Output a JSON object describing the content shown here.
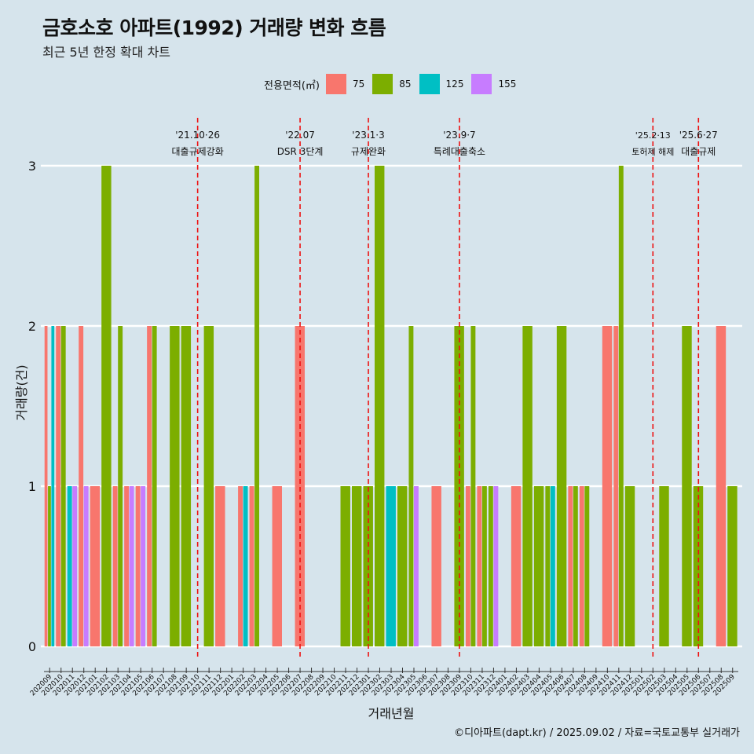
{
  "title": "금호소호 아파트(1992) 거래량 변화 흐름",
  "subtitle": "최근 5년 한정 확대 차트",
  "caption": "©디아파트(dapt.kr) / 2025.09.02 / 자료=국토교통부 실거래가",
  "legend": {
    "title": "전용면적(㎡)",
    "items": [
      {
        "label": "75",
        "color": "#f8766d"
      },
      {
        "label": "85",
        "color": "#7cae00"
      },
      {
        "label": "125",
        "color": "#00bfc4"
      },
      {
        "label": "155",
        "color": "#c77cff"
      }
    ]
  },
  "chart_data": {
    "type": "bar",
    "xlabel": "거래년월",
    "ylabel": "거래량(건)",
    "ylim": [
      0,
      3
    ],
    "yticks": [
      0,
      1,
      2,
      3
    ],
    "grid": true,
    "legend_position": "top",
    "categories": [
      "202009",
      "202010",
      "202011",
      "202012",
      "202101",
      "202102",
      "202103",
      "202104",
      "202105",
      "202106",
      "202107",
      "202108",
      "202109",
      "202110",
      "202111",
      "202112",
      "202201",
      "202202",
      "202203",
      "202204",
      "202205",
      "202206",
      "202207",
      "202208",
      "202209",
      "202210",
      "202211",
      "202212",
      "202301",
      "202302",
      "202303",
      "202304",
      "202305",
      "202306",
      "202307",
      "202308",
      "202309",
      "202310",
      "202311",
      "202312",
      "202401",
      "202402",
      "202403",
      "202404",
      "202405",
      "202406",
      "202407",
      "202408",
      "202409",
      "202410",
      "202411",
      "202412",
      "202501",
      "202502",
      "202503",
      "202504",
      "202505",
      "202506",
      "202507",
      "202508",
      "202509"
    ],
    "series": [
      {
        "name": "75",
        "values": [
          2,
          2,
          0,
          2,
          1,
          0,
          1,
          1,
          1,
          2,
          0,
          0,
          0,
          0,
          0,
          1,
          0,
          1,
          1,
          0,
          1,
          0,
          2,
          0,
          0,
          0,
          0,
          0,
          0,
          0,
          0,
          0,
          0,
          0,
          1,
          0,
          0,
          1,
          1,
          0,
          0,
          1,
          0,
          0,
          0,
          0,
          1,
          1,
          0,
          2,
          2,
          0,
          0,
          0,
          0,
          0,
          0,
          0,
          0,
          2,
          0
        ]
      },
      {
        "name": "85",
        "values": [
          1,
          2,
          0,
          0,
          0,
          3,
          2,
          0,
          0,
          2,
          0,
          2,
          2,
          0,
          2,
          0,
          0,
          0,
          3,
          0,
          0,
          0,
          0,
          0,
          0,
          0,
          1,
          1,
          1,
          3,
          0,
          1,
          2,
          0,
          0,
          0,
          2,
          2,
          1,
          1,
          0,
          0,
          2,
          1,
          1,
          2,
          1,
          1,
          0,
          0,
          3,
          1,
          0,
          0,
          1,
          0,
          2,
          1,
          0,
          0,
          1
        ]
      },
      {
        "name": "125",
        "values": [
          2,
          0,
          1,
          0,
          0,
          0,
          0,
          0,
          0,
          0,
          0,
          0,
          0,
          0,
          0,
          0,
          0,
          1,
          0,
          0,
          0,
          0,
          0,
          0,
          0,
          0,
          0,
          0,
          0,
          0,
          1,
          0,
          0,
          0,
          0,
          0,
          0,
          0,
          0,
          0,
          0,
          0,
          0,
          0,
          1,
          0,
          0,
          0,
          0,
          0,
          0,
          0,
          0,
          0,
          0,
          0,
          0,
          0,
          0,
          0,
          0
        ]
      },
      {
        "name": "155",
        "values": [
          0,
          0,
          1,
          1,
          0,
          0,
          0,
          1,
          1,
          0,
          0,
          0,
          0,
          0,
          0,
          0,
          0,
          0,
          0,
          0,
          0,
          0,
          0,
          0,
          0,
          0,
          0,
          0,
          0,
          0,
          0,
          0,
          1,
          0,
          0,
          0,
          0,
          0,
          0,
          1,
          0,
          0,
          0,
          0,
          0,
          0,
          0,
          0,
          0,
          0,
          0,
          0,
          0,
          0,
          0,
          0,
          0,
          0,
          0,
          0,
          0
        ]
      }
    ],
    "annotations": [
      {
        "month": "202110",
        "date": "'21.10·26",
        "label": "대출규제강화",
        "small": false
      },
      {
        "month": "202207",
        "date": "'22.07",
        "label": "DSR 3단계",
        "small": false
      },
      {
        "month": "202301",
        "date": "'23.1·3",
        "label": "규제완화",
        "small": false
      },
      {
        "month": "202309",
        "date": "'23.9·7",
        "label": "특례대출축소",
        "small": false
      },
      {
        "month": "202502",
        "date": "'25.2·13",
        "label": "토허제 해제",
        "small": true
      },
      {
        "month": "202506",
        "date": "'25.6·27",
        "label": "대출규제",
        "small": false
      }
    ]
  }
}
